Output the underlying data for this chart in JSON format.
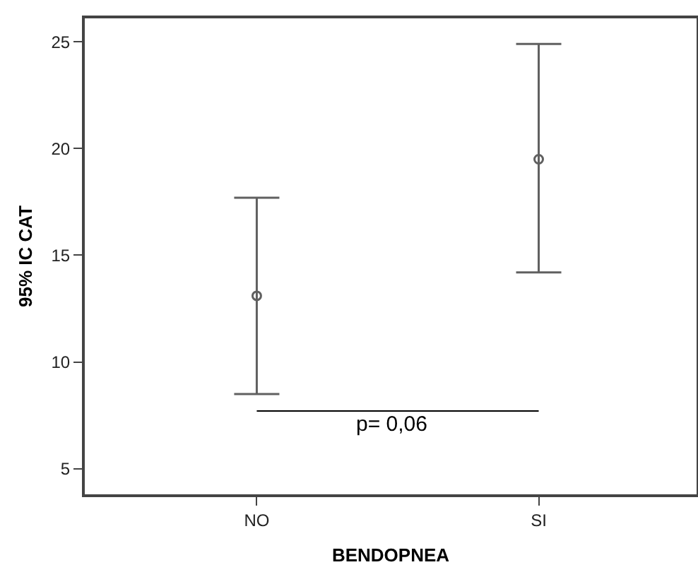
{
  "chart_data": {
    "type": "scatter",
    "xlabel": "BENDOPNEA",
    "ylabel": "95% IC CAT",
    "categories": [
      "NO",
      "SI"
    ],
    "values": [
      13.1,
      19.5
    ],
    "errors": [
      [
        8.5,
        17.7
      ],
      [
        14.2,
        24.9
      ]
    ],
    "color": "#606060",
    "marker": "circle",
    "ylim": [
      3.8,
      26.1
    ],
    "yticks": [
      5,
      10,
      15,
      20,
      25
    ],
    "grid": false,
    "annotations": [
      "p= 0,06"
    ]
  }
}
